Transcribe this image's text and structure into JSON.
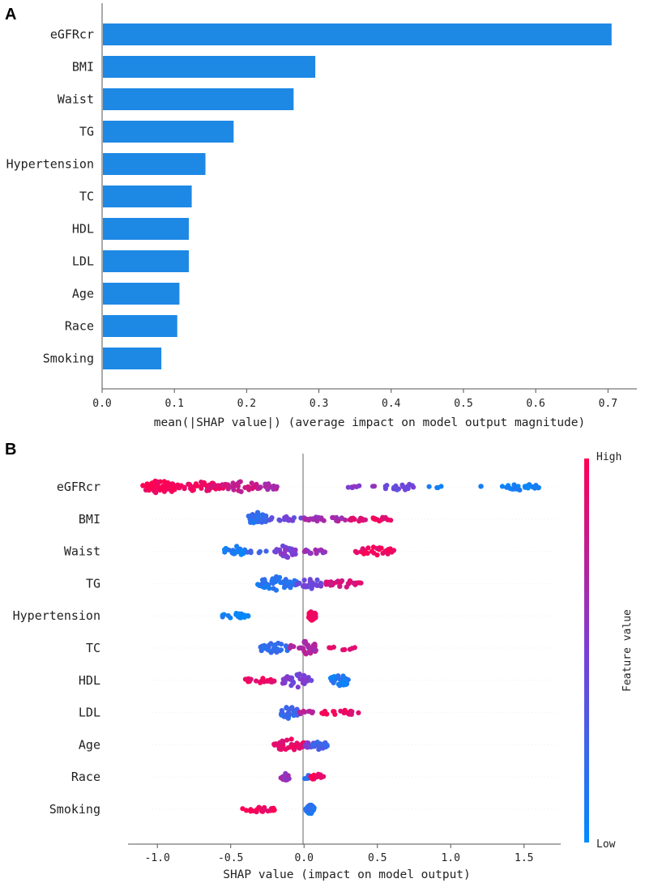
{
  "chart_data": [
    {
      "panel": "A",
      "type": "bar",
      "orientation": "horizontal",
      "categories": [
        "eGFRcr",
        "BMI",
        "Waist",
        "TG",
        "Hypertension",
        "TC",
        "HDL",
        "LDL",
        "Age",
        "Race",
        "Smoking"
      ],
      "values": [
        0.705,
        0.295,
        0.265,
        0.182,
        0.143,
        0.124,
        0.12,
        0.12,
        0.107,
        0.104,
        0.082
      ],
      "xlabel": "mean(|SHAP value|) (average impact on model output magnitude)",
      "xlim": [
        0.0,
        0.74
      ],
      "xticks": [
        0.0,
        0.1,
        0.2,
        0.3,
        0.4,
        0.5,
        0.6,
        0.7
      ],
      "xtick_labels": [
        "0.0",
        "0.1",
        "0.2",
        "0.3",
        "0.4",
        "0.5",
        "0.6",
        "0.7"
      ],
      "bar_color": "#1e88e5"
    },
    {
      "panel": "B",
      "type": "scatter",
      "subtype": "beeswarm",
      "categories": [
        "eGFRcr",
        "BMI",
        "Waist",
        "TG",
        "Hypertension",
        "TC",
        "HDL",
        "LDL",
        "Age",
        "Race",
        "Smoking"
      ],
      "xlabel": "SHAP value (impact on model output)",
      "xlim": [
        -1.2,
        1.75
      ],
      "xticks": [
        -1.0,
        -0.5,
        0.0,
        0.5,
        1.0,
        1.5
      ],
      "xtick_labels": [
        "-1.0",
        "-0.5",
        "0.0",
        "0.5",
        "1.0",
        "1.5"
      ],
      "colorbar": {
        "label": "Feature value",
        "high": "High",
        "low": "Low",
        "high_color": "#ff0052",
        "low_color": "#008bfb"
      },
      "series": [
        {
          "name": "eGFRcr",
          "clusters": [
            {
              "x": [
                -1.1,
                -0.85
              ],
              "n": 60,
              "v": 0.97,
              "h": 1.0
            },
            {
              "x": [
                -0.85,
                -0.55
              ],
              "n": 40,
              "v": 0.92,
              "h": 0.75
            },
            {
              "x": [
                -0.55,
                -0.3
              ],
              "n": 35,
              "v": 0.8,
              "h": 0.8
            },
            {
              "x": [
                -0.3,
                -0.18
              ],
              "n": 12,
              "v": 0.65,
              "h": 0.6
            },
            {
              "x": [
                0.3,
                0.5
              ],
              "n": 8,
              "v": 0.55,
              "h": 0.3
            },
            {
              "x": [
                0.55,
                0.75
              ],
              "n": 20,
              "v": 0.45,
              "h": 0.6
            },
            {
              "x": [
                0.85,
                0.95
              ],
              "n": 4,
              "v": 0.12,
              "h": 0.2
            },
            {
              "x": [
                1.15,
                1.22
              ],
              "n": 2,
              "v": 0.08,
              "h": 0.15
            },
            {
              "x": [
                1.35,
                1.6
              ],
              "n": 25,
              "v": 0.05,
              "h": 0.45
            }
          ]
        },
        {
          "name": "BMI",
          "clusters": [
            {
              "x": [
                -0.38,
                -0.25
              ],
              "n": 40,
              "v": 0.2,
              "h": 1.0
            },
            {
              "x": [
                -0.25,
                0.0
              ],
              "n": 15,
              "v": 0.45,
              "h": 0.35
            },
            {
              "x": [
                0.0,
                0.3
              ],
              "n": 25,
              "v": 0.65,
              "h": 0.45
            },
            {
              "x": [
                0.3,
                0.6
              ],
              "n": 25,
              "v": 0.9,
              "h": 0.4
            }
          ]
        },
        {
          "name": "Waist",
          "clusters": [
            {
              "x": [
                -0.55,
                -0.4
              ],
              "n": 20,
              "v": 0.08,
              "h": 0.8
            },
            {
              "x": [
                -0.4,
                -0.22
              ],
              "n": 6,
              "v": 0.25,
              "h": 0.3
            },
            {
              "x": [
                -0.2,
                -0.05
              ],
              "n": 35,
              "v": 0.5,
              "h": 1.0
            },
            {
              "x": [
                0.0,
                0.15
              ],
              "n": 15,
              "v": 0.6,
              "h": 0.4
            },
            {
              "x": [
                0.35,
                0.62
              ],
              "n": 30,
              "v": 0.95,
              "h": 0.65
            }
          ]
        },
        {
          "name": "TG",
          "clusters": [
            {
              "x": [
                -0.32,
                -0.05
              ],
              "n": 45,
              "v": 0.15,
              "h": 0.95
            },
            {
              "x": [
                -0.05,
                0.15
              ],
              "n": 25,
              "v": 0.45,
              "h": 0.7
            },
            {
              "x": [
                0.15,
                0.4
              ],
              "n": 30,
              "v": 0.85,
              "h": 0.55
            }
          ]
        },
        {
          "name": "Hypertension",
          "clusters": [
            {
              "x": [
                -0.58,
                -0.38
              ],
              "n": 22,
              "v": 0.05,
              "h": 0.4
            },
            {
              "x": [
                0.03,
                0.08
              ],
              "n": 30,
              "v": 0.97,
              "h": 0.7
            }
          ]
        },
        {
          "name": "TC",
          "clusters": [
            {
              "x": [
                -0.3,
                -0.1
              ],
              "n": 30,
              "v": 0.2,
              "h": 0.8
            },
            {
              "x": [
                -0.1,
                0.1
              ],
              "n": 35,
              "v": 0.7,
              "h": 1.0
            },
            {
              "x": [
                0.15,
                0.35
              ],
              "n": 8,
              "v": 0.9,
              "h": 0.3
            }
          ]
        },
        {
          "name": "HDL",
          "clusters": [
            {
              "x": [
                -0.4,
                -0.18
              ],
              "n": 20,
              "v": 0.93,
              "h": 0.5
            },
            {
              "x": [
                -0.15,
                0.05
              ],
              "n": 35,
              "v": 0.5,
              "h": 1.0
            },
            {
              "x": [
                0.18,
                0.32
              ],
              "n": 25,
              "v": 0.1,
              "h": 0.85
            }
          ]
        },
        {
          "name": "LDL",
          "clusters": [
            {
              "x": [
                -0.16,
                -0.04
              ],
              "n": 30,
              "v": 0.25,
              "h": 0.95
            },
            {
              "x": [
                -0.04,
                0.06
              ],
              "n": 10,
              "v": 0.7,
              "h": 0.3
            },
            {
              "x": [
                0.12,
                0.38
              ],
              "n": 20,
              "v": 0.92,
              "h": 0.4
            }
          ]
        },
        {
          "name": "Age",
          "clusters": [
            {
              "x": [
                -0.22,
                0.0
              ],
              "n": 40,
              "v": 0.9,
              "h": 0.9
            },
            {
              "x": [
                0.0,
                0.08
              ],
              "n": 15,
              "v": 0.5,
              "h": 0.5
            },
            {
              "x": [
                0.05,
                0.16
              ],
              "n": 25,
              "v": 0.25,
              "h": 0.7
            }
          ]
        },
        {
          "name": "Race",
          "clusters": [
            {
              "x": [
                -0.16,
                -0.1
              ],
              "n": 15,
              "v": 0.6,
              "h": 0.6
            },
            {
              "x": [
                -0.02,
                0.05
              ],
              "n": 8,
              "v": 0.2,
              "h": 0.3
            },
            {
              "x": [
                0.04,
                0.14
              ],
              "n": 15,
              "v": 0.95,
              "h": 0.45
            }
          ]
        },
        {
          "name": "Smoking",
          "clusters": [
            {
              "x": [
                -0.42,
                -0.2
              ],
              "n": 25,
              "v": 0.97,
              "h": 0.4
            },
            {
              "x": [
                0.01,
                0.07
              ],
              "n": 40,
              "v": 0.15,
              "h": 0.7
            }
          ]
        }
      ]
    }
  ]
}
